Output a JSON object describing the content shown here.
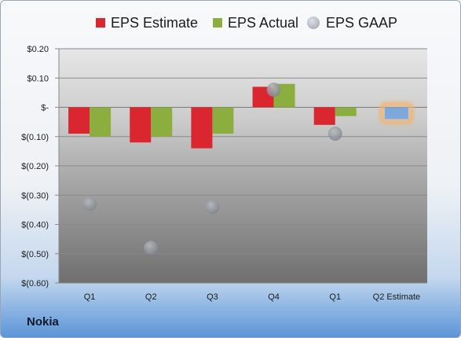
{
  "chart_data": {
    "type": "bar",
    "categories": [
      "Q1",
      "Q2",
      "Q3",
      "Q4",
      "Q1",
      "Q2 Estimate"
    ],
    "series": [
      {
        "name": "EPS Estimate",
        "values": [
          -0.09,
          -0.12,
          -0.14,
          0.07,
          -0.06,
          null
        ],
        "color": "#d9262f"
      },
      {
        "name": "EPS Actual",
        "values": [
          -0.1,
          -0.1,
          -0.09,
          0.08,
          -0.03,
          null
        ],
        "color": "#8bae3f"
      },
      {
        "name": "EPS GAAP",
        "type": "scatter",
        "values": [
          -0.33,
          -0.48,
          -0.34,
          0.06,
          -0.09,
          null
        ],
        "color": "#9aa0a8"
      },
      {
        "name": "",
        "values": [
          null,
          null,
          null,
          null,
          null,
          -0.04
        ],
        "color": "#7ea7dc",
        "highlight": "#f2b36d"
      }
    ],
    "ylim": [
      -0.6,
      0.2
    ],
    "yticks": [
      0.2,
      0.1,
      0,
      -0.1,
      -0.2,
      -0.3,
      -0.4,
      -0.5,
      -0.6
    ],
    "ytick_labels": [
      "$0.20",
      "$0.10",
      "$-",
      "$(0.10)",
      "$(0.20)",
      "$(0.30)",
      "$(0.40)",
      "$(0.50)",
      "$(0.60)"
    ],
    "grid": true,
    "legend_position": "top"
  },
  "footer": {
    "company": "Nokia"
  }
}
